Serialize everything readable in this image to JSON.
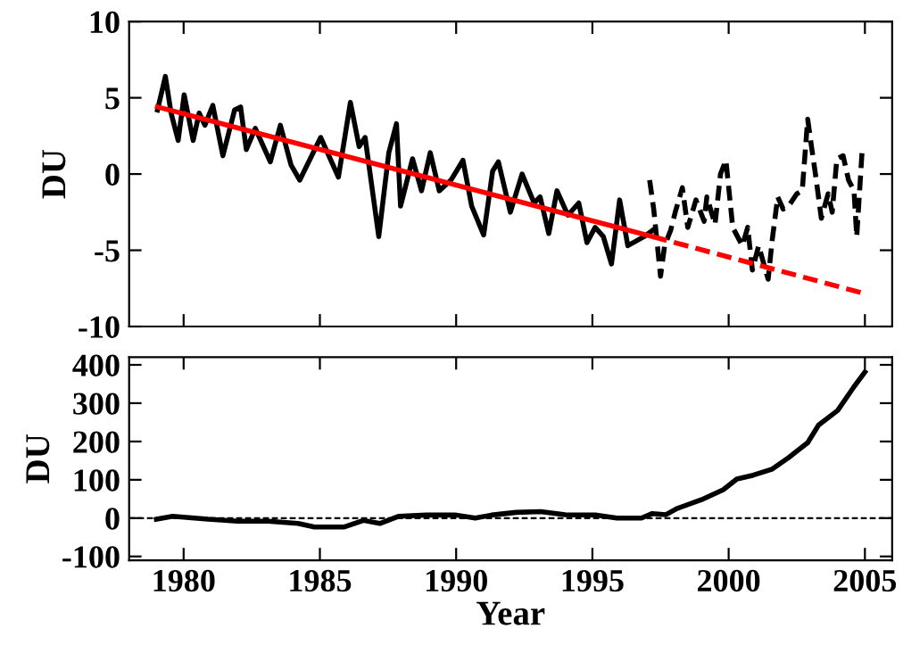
{
  "chart_data": [
    {
      "type": "line",
      "ylabel": "DU",
      "xlim": [
        1978,
        2006
      ],
      "ylim": [
        -10,
        10
      ],
      "xticks": [
        1980,
        1985,
        1990,
        1995,
        2000,
        2005
      ],
      "yticks": [
        -10,
        -5,
        0,
        5,
        10
      ],
      "tick_labels": "y",
      "grid": false,
      "legend": false,
      "marker": "none",
      "series": [
        {
          "color": "#000000",
          "line_style": "solid",
          "x": [
            1979.04,
            1979.33,
            1979.54,
            1979.8,
            1980.02,
            1980.35,
            1980.57,
            1980.78,
            1981.07,
            1981.44,
            1981.87,
            1982.09,
            1982.3,
            1982.63,
            1983.18,
            1983.55,
            1983.94,
            1984.26,
            1985.03,
            1985.68,
            1986.12,
            1986.44,
            1986.66,
            1987.16,
            1987.53,
            1987.81,
            1987.96,
            1988.4,
            1988.73,
            1989.05,
            1989.38,
            1989.81,
            1990.25,
            1990.57,
            1991.01,
            1991.34,
            1991.55,
            1991.99,
            1992.42,
            1992.86,
            1993.08,
            1993.4,
            1993.7,
            1994.1,
            1994.5,
            1994.8,
            1995.1,
            1995.4,
            1995.7,
            1996.0,
            1996.3,
            1996.9,
            1997.2
          ],
          "values": [
            4.2,
            6.4,
            4.0,
            2.2,
            5.2,
            2.2,
            4.0,
            3.2,
            4.5,
            1.2,
            4.2,
            4.4,
            1.6,
            3.0,
            0.8,
            3.2,
            0.6,
            -0.4,
            2.4,
            -0.2,
            4.7,
            1.8,
            2.4,
            -4.1,
            1.4,
            3.3,
            -2.1,
            1.0,
            -1.1,
            1.4,
            -1.1,
            -0.4,
            0.9,
            -2.1,
            -4.0,
            0.2,
            0.8,
            -2.5,
            0,
            -1.9,
            -1.5,
            -3.9,
            -1.1,
            -2.7,
            -1.9,
            -4.5,
            -3.5,
            -4.1,
            -5.9,
            -1.7,
            -4.7,
            -4.1,
            -3.7
          ]
        },
        {
          "color": "#000000",
          "line_style": "dashed",
          "x": [
            1997.1,
            1997.25,
            1997.5,
            1997.65,
            1997.87,
            1998.04,
            1998.3,
            1998.5,
            1998.8,
            1999.1,
            1999.2,
            1999.5,
            1999.7,
            1999.9,
            2000.15,
            2000.5,
            2000.7,
            2000.87,
            2001.1,
            2001.45,
            2001.6,
            2001.8,
            2002.0,
            2002.2,
            2002.5,
            2002.7,
            2002.9,
            2003.04,
            2003.2,
            2003.4,
            2003.65,
            2003.8,
            2003.97,
            2004.2,
            2004.4,
            2004.6,
            2004.7,
            2004.9
          ],
          "values": [
            -0.4,
            -2.3,
            -6.7,
            -4.7,
            -3.7,
            -2.5,
            -0.9,
            -3.5,
            -1.7,
            -3.1,
            -1.5,
            -3.3,
            0,
            0.9,
            -3.5,
            -4.7,
            -3.5,
            -6.3,
            -4.7,
            -6.9,
            -4.3,
            -1.5,
            -2.3,
            -2.1,
            -1.3,
            -1.1,
            3.6,
            1.8,
            -0.2,
            -2.9,
            -1.3,
            -2.5,
            1.0,
            1.2,
            -0.4,
            -1.1,
            -4.1,
            1.6
          ]
        },
        {
          "color": "#ff0000",
          "line_style": "solid",
          "x": [
            1979.04,
            1997.2
          ],
          "values": [
            4.4,
            -4.1
          ]
        },
        {
          "color": "#ff0000",
          "line_style": "dashed",
          "x": [
            1997.2,
            2004.9
          ],
          "values": [
            -4.1,
            -7.8
          ]
        }
      ]
    },
    {
      "type": "line",
      "xlabel": "Year",
      "ylabel": "DU",
      "xlim": [
        1978,
        2006
      ],
      "ylim": [
        -110,
        420
      ],
      "xticks": [
        1980,
        1985,
        1990,
        1995,
        2000,
        2005
      ],
      "yticks": [
        -100,
        0,
        100,
        200,
        300,
        400
      ],
      "grid": false,
      "legend": false,
      "marker": "none",
      "ref_lines": [
        {
          "axis": "y",
          "value": 0,
          "label": null,
          "color": "#000000",
          "line_style": "dashed"
        }
      ],
      "series": [
        {
          "color": "#000000",
          "line_style": "solid",
          "x": [
            1979.0,
            1979.6,
            1980.9,
            1982.0,
            1983.1,
            1984.2,
            1984.8,
            1985.9,
            1986.6,
            1987.2,
            1987.9,
            1988.9,
            1990.0,
            1990.7,
            1991.3,
            1992.2,
            1993.1,
            1994.0,
            1995.1,
            1995.9,
            1996.8,
            1997.2,
            1997.7,
            1998.1,
            1999.0,
            1999.8,
            2000.3,
            2000.9,
            2001.6,
            2002.2,
            2002.9,
            2003.3,
            2004.0,
            2004.6,
            2005.0
          ],
          "values": [
            -3,
            5,
            -3,
            -8,
            -8,
            -14,
            -23,
            -23,
            -6,
            -14,
            5,
            8,
            8,
            0,
            8,
            15,
            17,
            9,
            8,
            0,
            0,
            12,
            9,
            25,
            48,
            74,
            102,
            112,
            128,
            158,
            197,
            243,
            281,
            343,
            381
          ]
        }
      ]
    }
  ]
}
